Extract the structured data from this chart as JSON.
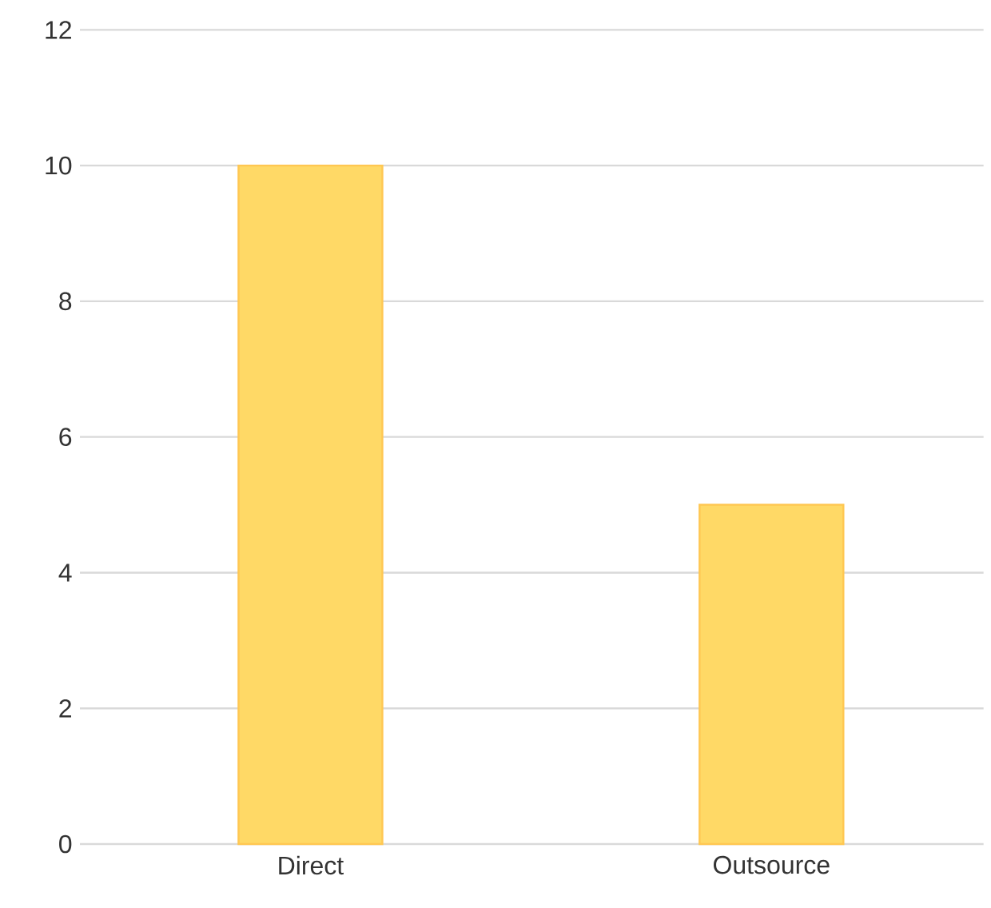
{
  "chart_data": {
    "type": "bar",
    "categories": [
      "Direct",
      "Outsource"
    ],
    "values": [
      10,
      5
    ],
    "color": "#ffd966",
    "ylim": [
      0,
      12
    ],
    "yticks": [
      0,
      2,
      4,
      6,
      8,
      10,
      12
    ],
    "grid": "y"
  }
}
